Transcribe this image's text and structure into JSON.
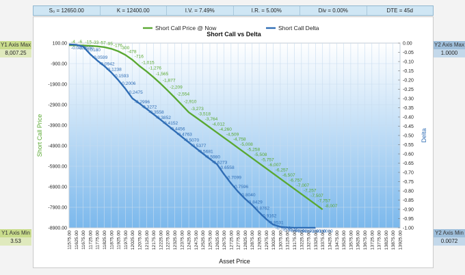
{
  "params": [
    {
      "key": "s0",
      "label": "S₀ = 12650.00"
    },
    {
      "key": "k",
      "label": "K = 12400.00"
    },
    {
      "key": "iv",
      "label": "I.V. = 7.49%"
    },
    {
      "key": "ir",
      "label": "I.R. = 5.00%"
    },
    {
      "key": "div",
      "label": "Div = 0.00%"
    },
    {
      "key": "dte",
      "label": "DTE = 45d"
    }
  ],
  "axis_boxes": {
    "y1_max": {
      "label": "Y1 Axis Max",
      "value": "8,007.25"
    },
    "y1_min": {
      "label": "Y1 Axis Min",
      "value": "3.53"
    },
    "y2_max": {
      "label": "Y2 Axis Max",
      "value": "1.0000"
    },
    "y2_min": {
      "label": "Y2 Axis Min",
      "value": "0.0072"
    }
  },
  "colors": {
    "price": "#5aa832",
    "delta": "#2f6db5",
    "plot_top": "#ffffff",
    "plot_bottom": "#7bb8ec"
  },
  "chart_data": {
    "type": "line",
    "title": "Short Call vs Delta",
    "xlabel": "Asset Price",
    "ylabel": "Short Call Price",
    "y2label": "Delta",
    "legend": "top-center",
    "grid": true,
    "ylim": [
      -8900,
      100
    ],
    "y2lim": [
      -1.0,
      0.0
    ],
    "y1_ticks": [
      "100.00",
      "-900.00",
      "-1900.00",
      "-2900.00",
      "-3900.00",
      "-4900.00",
      "-5900.00",
      "-6900.00",
      "-7900.00",
      "-8900.00"
    ],
    "y2_ticks": [
      "0.00",
      "-0.05",
      "-0.10",
      "-0.15",
      "-0.20",
      "-0.25",
      "-0.30",
      "-0.35",
      "-0.40",
      "-0.45",
      "-0.50",
      "-0.55",
      "-0.60",
      "-0.65",
      "-0.70",
      "-0.75",
      "-0.80",
      "-0.85",
      "-0.90",
      "-0.95",
      "-1.00"
    ],
    "x": [
      "11575.00",
      "11625.00",
      "11675.00",
      "11725.00",
      "11775.00",
      "11825.00",
      "11875.00",
      "11925.00",
      "11975.00",
      "12025.00",
      "12075.00",
      "12125.00",
      "12175.00",
      "12225.00",
      "12275.00",
      "12325.00",
      "12375.00",
      "12425.00",
      "12475.00",
      "12525.00",
      "12575.00",
      "12625.00",
      "12675.00",
      "12725.00",
      "12775.00",
      "12825.00",
      "12875.00",
      "12925.00",
      "12975.00",
      "13025.00",
      "13075.00",
      "13125.00",
      "13175.00",
      "13225.00",
      "13275.00",
      "13325.00",
      "13375.00",
      "13425.00",
      "13475.00",
      "13525.00",
      "13575.00",
      "13625.00",
      "13675.00",
      "13725.00",
      "13775.00",
      "13825.00",
      "13875.00",
      "13925.00"
    ],
    "series": [
      {
        "name": "Short Call Price @ Now",
        "points": [
          [
            11575,
            -4
          ],
          [
            11625,
            -6
          ],
          [
            11675,
            -15
          ],
          [
            11725,
            -33
          ],
          [
            11775,
            -57
          ],
          [
            11825,
            -95
          ],
          [
            11875,
            -176
          ],
          [
            11925,
            -300
          ],
          [
            11975,
            -478
          ],
          [
            12025,
            -716
          ],
          [
            12075,
            -1015
          ],
          [
            12125,
            -1276
          ],
          [
            12175,
            -1565
          ],
          [
            12225,
            -1877
          ],
          [
            12275,
            -2209
          ],
          [
            12325,
            -2554
          ],
          [
            12375,
            -2910
          ],
          [
            12425,
            -3273
          ],
          [
            12475,
            -3518
          ],
          [
            12525,
            -3764
          ],
          [
            12575,
            -4012
          ],
          [
            12625,
            -4260
          ],
          [
            12675,
            -4509
          ],
          [
            12725,
            -4758
          ],
          [
            12775,
            -5008
          ],
          [
            12825,
            -5258
          ],
          [
            12875,
            -5508
          ],
          [
            12925,
            -5757
          ],
          [
            12975,
            -6007
          ],
          [
            13025,
            -6257
          ],
          [
            13075,
            -6507
          ],
          [
            13125,
            -6757
          ],
          [
            13175,
            -7007
          ],
          [
            13225,
            -7257
          ],
          [
            13275,
            -7507
          ],
          [
            13325,
            -7757
          ],
          [
            13375,
            -8007
          ]
        ],
        "labels": [
          "-4",
          "-6",
          "-15",
          "-33",
          "-57",
          "-95",
          "-176",
          "-300",
          "-478",
          "-716",
          "-1,015",
          "-1,276",
          "-1,565",
          "-1,877",
          "-2,209",
          "-2,554",
          "-2,910",
          "-3,273",
          "-3,518",
          "-3,764",
          "-4,012",
          "-4,260",
          "-4,509",
          "-4,758",
          "-5,008",
          "-5,258",
          "-5,508",
          "-5,757",
          "-6,007",
          "-6,257",
          "-6,507",
          "-6,757",
          "-7,007",
          "-7,257",
          "-7,507",
          "-7,757",
          "-8,007"
        ]
      },
      {
        "name": "Short Call Delta",
        "points": [
          [
            11575,
            -0.0072
          ],
          [
            11625,
            -0.009
          ],
          [
            11675,
            -0.018
          ],
          [
            11725,
            -0.0599
          ],
          [
            11775,
            -0.0942
          ],
          [
            11825,
            -0.1238
          ],
          [
            11875,
            -0.1593
          ],
          [
            11925,
            -0.2006
          ],
          [
            11975,
            -0.2475
          ],
          [
            12025,
            -0.2996
          ],
          [
            12075,
            -0.3272
          ],
          [
            12125,
            -0.3558
          ],
          [
            12175,
            -0.3852
          ],
          [
            12225,
            -0.4152
          ],
          [
            12275,
            -0.4456
          ],
          [
            12325,
            -0.4763
          ],
          [
            12375,
            -0.507
          ],
          [
            12425,
            -0.5377
          ],
          [
            12475,
            -0.5681
          ],
          [
            12525,
            -0.598
          ],
          [
            12575,
            -0.6273
          ],
          [
            12625,
            -0.6558
          ],
          [
            12675,
            -0.7099
          ],
          [
            12725,
            -0.7596
          ],
          [
            12775,
            -0.804
          ],
          [
            12825,
            -0.8429
          ],
          [
            12875,
            -0.8762
          ],
          [
            12925,
            -0.9162
          ],
          [
            12975,
            -0.9531
          ],
          [
            13025,
            -0.9828
          ],
          [
            13075,
            -0.9946
          ],
          [
            13125,
            -0.9986
          ],
          [
            13175,
            -0.9997
          ],
          [
            13225,
            -0.9999
          ],
          [
            13275,
            -1.0
          ],
          [
            13325,
            -1.0
          ]
        ],
        "labels": [
          "-0.0072",
          "-0.0090",
          "-0.0180",
          "-0.0599",
          "-0.0942",
          "-0.1238",
          "-0.1593",
          "-0.2006",
          "-0.2475",
          "-0.2996",
          "-0.3272",
          "-0.3558",
          "-0.3852",
          "-0.4152",
          "-0.4456",
          "-0.4763",
          "-0.5070",
          "-0.5377",
          "-0.5681",
          "-0.5980",
          "-0.6273",
          "-0.6558",
          "-0.7099",
          "-0.7596",
          "-0.8040",
          "-0.8429",
          "-0.8762",
          "-0.9162",
          "-0.9531",
          "-0.9828",
          "-0.9946",
          "-0.9986",
          "-0.9997",
          "-0.9999",
          "-1.0000",
          "-1.0000"
        ]
      }
    ]
  }
}
